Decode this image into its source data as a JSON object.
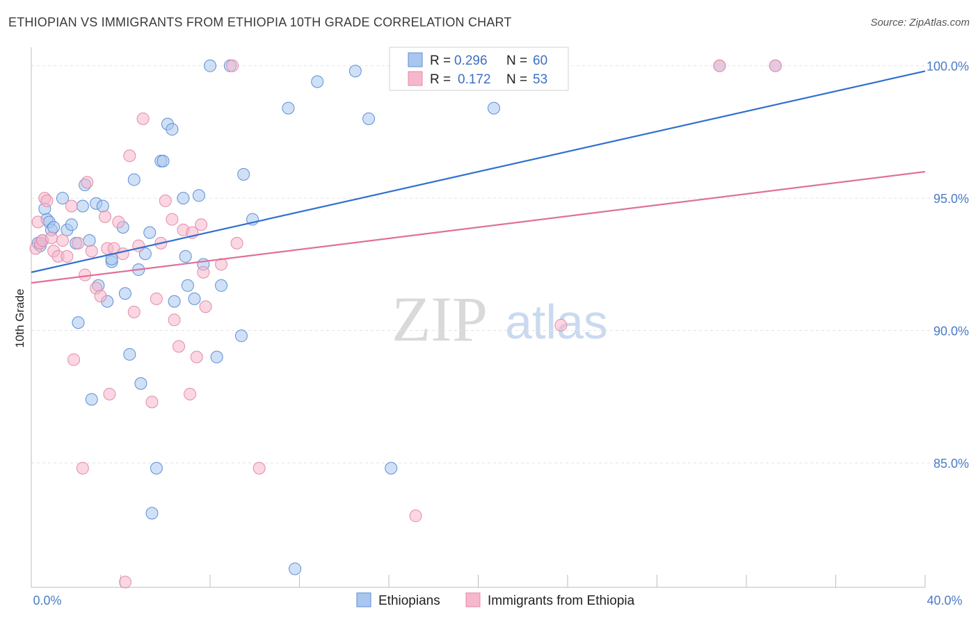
{
  "title": "ETHIOPIAN VS IMMIGRANTS FROM ETHIOPIA 10TH GRADE CORRELATION CHART",
  "source": "Source: ZipAtlas.com",
  "watermark": {
    "zip": "ZIP",
    "atlas": "atlas"
  },
  "chart_data": {
    "type": "scatter",
    "title": "ETHIOPIAN VS IMMIGRANTS FROM ETHIOPIA 10TH GRADE CORRELATION CHART",
    "xlabel": "",
    "ylabel": "10th Grade",
    "xlim": [
      0,
      40
    ],
    "ylim": [
      80.3,
      100.7
    ],
    "x_tick_labels": [
      "0.0%",
      "40.0%"
    ],
    "y_ticks": [
      {
        "value": 85,
        "label": "85.0%"
      },
      {
        "value": 90,
        "label": "90.0%"
      },
      {
        "value": 95,
        "label": "95.0%"
      },
      {
        "value": 100,
        "label": "100.0%"
      }
    ],
    "grid": true,
    "legend": {
      "stats": [
        {
          "r_label": "R =",
          "r": "0.296",
          "n_label": "N =",
          "n": "60"
        },
        {
          "r_label": "R =",
          "r": "0.172",
          "n_label": "N =",
          "n": "53"
        }
      ],
      "bottom": [
        "Ethiopians",
        "Immigrants from Ethiopia"
      ]
    },
    "colors": {
      "blue_fill": "#a9c6ee",
      "blue_stroke": "#5b8fd6",
      "blue_line": "#2f6fcf",
      "pink_fill": "#f6b7cb",
      "pink_stroke": "#e48aa8",
      "pink_line": "#e0709a"
    },
    "series": [
      {
        "name": "Ethiopians",
        "trend": {
          "x": [
            0,
            40
          ],
          "y": [
            92.2,
            99.8
          ]
        },
        "points": [
          [
            0.3,
            93.3
          ],
          [
            0.4,
            93.2
          ],
          [
            0.5,
            93.4
          ],
          [
            0.6,
            94.6
          ],
          [
            0.7,
            94.2
          ],
          [
            0.8,
            94.1
          ],
          [
            0.9,
            93.8
          ],
          [
            1.0,
            93.9
          ],
          [
            1.4,
            95.0
          ],
          [
            1.6,
            93.8
          ],
          [
            1.8,
            94.0
          ],
          [
            2.0,
            93.3
          ],
          [
            2.1,
            90.3
          ],
          [
            2.3,
            94.7
          ],
          [
            2.4,
            95.5
          ],
          [
            2.6,
            93.4
          ],
          [
            2.7,
            87.4
          ],
          [
            2.9,
            94.8
          ],
          [
            3.0,
            91.7
          ],
          [
            3.2,
            94.7
          ],
          [
            3.4,
            91.1
          ],
          [
            3.6,
            92.6
          ],
          [
            3.6,
            92.7
          ],
          [
            4.1,
            93.9
          ],
          [
            4.2,
            91.4
          ],
          [
            4.4,
            89.1
          ],
          [
            4.6,
            95.7
          ],
          [
            4.8,
            92.3
          ],
          [
            4.9,
            88.0
          ],
          [
            5.1,
            92.9
          ],
          [
            5.3,
            93.7
          ],
          [
            5.4,
            83.1
          ],
          [
            5.6,
            84.8
          ],
          [
            5.8,
            96.4
          ],
          [
            5.9,
            96.4
          ],
          [
            6.1,
            97.8
          ],
          [
            6.3,
            97.6
          ],
          [
            6.4,
            91.1
          ],
          [
            6.8,
            95.0
          ],
          [
            6.9,
            92.8
          ],
          [
            7.0,
            91.7
          ],
          [
            7.3,
            91.2
          ],
          [
            7.5,
            95.1
          ],
          [
            7.7,
            92.5
          ],
          [
            8.3,
            89.0
          ],
          [
            8.5,
            91.7
          ],
          [
            8.0,
            100.0
          ],
          [
            9.4,
            89.8
          ],
          [
            9.5,
            95.9
          ],
          [
            9.9,
            94.2
          ],
          [
            11.5,
            98.4
          ],
          [
            11.8,
            81.0
          ],
          [
            12.8,
            99.4
          ],
          [
            14.5,
            99.8
          ],
          [
            15.1,
            98.0
          ],
          [
            16.1,
            84.8
          ],
          [
            20.7,
            98.4
          ],
          [
            30.8,
            100.0
          ],
          [
            33.3,
            100.0
          ],
          [
            8.9,
            100.0
          ]
        ]
      },
      {
        "name": "Immigrants from Ethiopia",
        "trend": {
          "x": [
            0,
            40
          ],
          "y": [
            91.8,
            96.0
          ]
        },
        "points": [
          [
            0.2,
            93.1
          ],
          [
            0.3,
            94.1
          ],
          [
            0.4,
            93.3
          ],
          [
            0.5,
            93.4
          ],
          [
            0.6,
            95.0
          ],
          [
            0.7,
            94.9
          ],
          [
            0.9,
            93.5
          ],
          [
            1.0,
            93.0
          ],
          [
            1.2,
            92.8
          ],
          [
            1.4,
            93.4
          ],
          [
            1.6,
            92.8
          ],
          [
            1.8,
            94.7
          ],
          [
            1.9,
            88.9
          ],
          [
            2.1,
            93.3
          ],
          [
            2.3,
            84.8
          ],
          [
            2.4,
            92.1
          ],
          [
            2.5,
            95.6
          ],
          [
            2.7,
            93.0
          ],
          [
            2.9,
            91.6
          ],
          [
            3.1,
            91.3
          ],
          [
            3.3,
            94.3
          ],
          [
            3.4,
            93.1
          ],
          [
            3.5,
            87.6
          ],
          [
            3.7,
            93.1
          ],
          [
            3.9,
            94.1
          ],
          [
            4.1,
            92.9
          ],
          [
            4.2,
            80.5
          ],
          [
            4.4,
            96.6
          ],
          [
            4.6,
            90.7
          ],
          [
            4.8,
            93.2
          ],
          [
            5.0,
            98.0
          ],
          [
            5.4,
            87.3
          ],
          [
            5.6,
            91.2
          ],
          [
            5.8,
            93.3
          ],
          [
            6.0,
            94.9
          ],
          [
            6.3,
            94.2
          ],
          [
            6.4,
            90.4
          ],
          [
            6.6,
            89.4
          ],
          [
            6.8,
            93.8
          ],
          [
            7.1,
            87.6
          ],
          [
            7.2,
            93.7
          ],
          [
            7.4,
            89.0
          ],
          [
            7.6,
            94.0
          ],
          [
            7.7,
            92.2
          ],
          [
            7.8,
            90.9
          ],
          [
            8.5,
            92.5
          ],
          [
            9.0,
            100.0
          ],
          [
            9.2,
            93.3
          ],
          [
            10.2,
            84.8
          ],
          [
            17.2,
            83.0
          ],
          [
            23.7,
            90.2
          ],
          [
            30.8,
            100.0
          ],
          [
            33.3,
            100.0
          ]
        ]
      }
    ]
  }
}
